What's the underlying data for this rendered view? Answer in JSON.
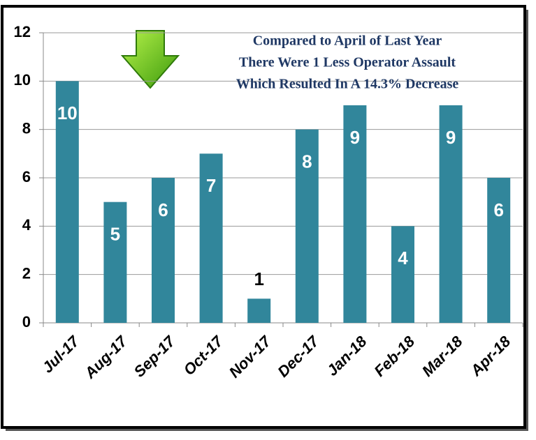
{
  "chart_data": {
    "type": "bar",
    "annotation": [
      "Compared to April of Last Year",
      "There Were 1 Less Operator Assault",
      "Which Resulted In A 14.3% Decrease"
    ],
    "categories": [
      "Jul-17",
      "Aug-17",
      "Sep-17",
      "Oct-17",
      "Nov-17",
      "Dec-17",
      "Jan-18",
      "Feb-18",
      "Mar-18",
      "Apr-18"
    ],
    "values": [
      10,
      5,
      6,
      7,
      1,
      8,
      9,
      4,
      9,
      6
    ],
    "color": "#31869b",
    "ylim": [
      0,
      12
    ],
    "yticks": [
      0,
      2,
      4,
      6,
      8,
      10,
      12
    ],
    "grid": true
  }
}
